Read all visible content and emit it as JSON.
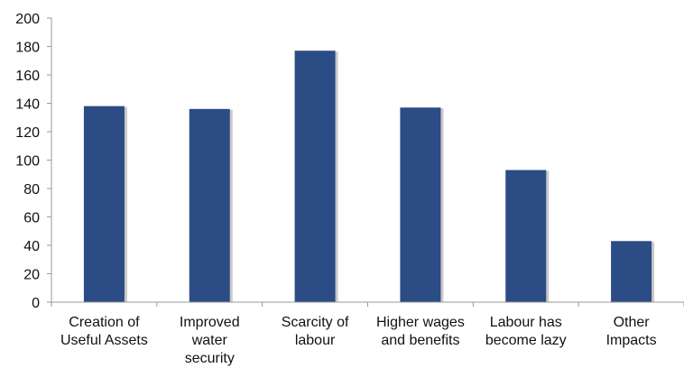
{
  "chart_data": {
    "type": "bar",
    "categories": [
      [
        "Creation of",
        "Useful Assets"
      ],
      [
        "Improved",
        "water",
        "security"
      ],
      [
        "Scarcity of",
        "labour"
      ],
      [
        "Higher wages",
        "and benefits"
      ],
      [
        "Labour has",
        "become lazy"
      ],
      [
        "Other",
        "Impacts"
      ]
    ],
    "values": [
      138,
      136,
      177,
      137,
      93,
      43
    ],
    "title": "",
    "xlabel": "",
    "ylabel": "",
    "ylim": [
      0,
      200
    ],
    "yticks": [
      0,
      20,
      40,
      60,
      80,
      100,
      120,
      140,
      160,
      180,
      200
    ],
    "grid": false,
    "legend": "none",
    "colors": {
      "bar": "#2b4c84",
      "bar_shadow": "#c9c9c9",
      "axis": "#9a9a9a"
    }
  }
}
